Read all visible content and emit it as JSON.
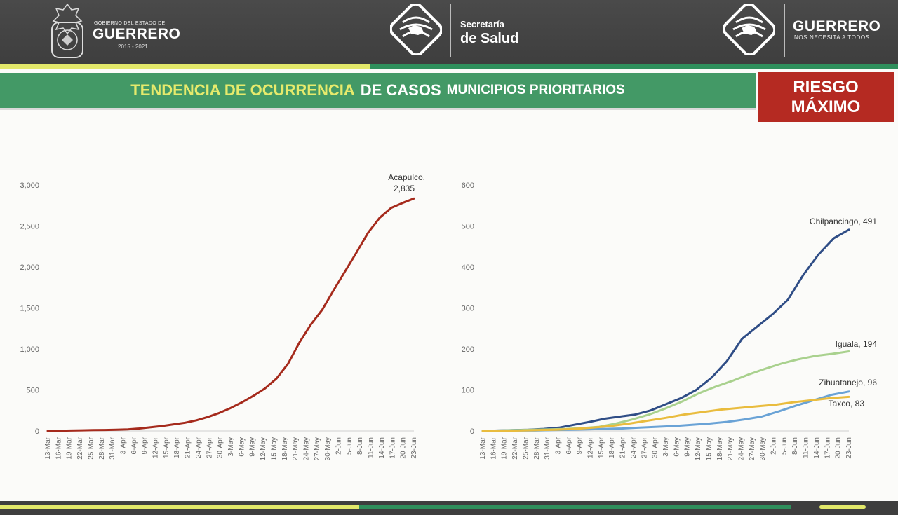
{
  "header": {
    "gobierno_small": "GOBIERNO DEL ESTADO DE",
    "gobierno_big": "GUERRERO",
    "gobierno_years": "2015 - 2021",
    "secretaria_small": "Secretaría",
    "secretaria_big": "de Salud",
    "guerrero_big": "GUERRERO",
    "guerrero_small": "NOS NECESITA A TODOS"
  },
  "banner": {
    "title_part1": "TENDENCIA DE OCURRENCIA",
    "title_part2": "DE CASOS",
    "title_part3": "MUNICIPIOS PRIORITARIOS",
    "risk_line1": "RIESGO",
    "risk_line2": "MÁXIMO"
  },
  "colors": {
    "header_bg": "#3e3e3e",
    "banner_green": "#439966",
    "accent_yellow": "#e2e86a",
    "risk_red": "#b52a22",
    "acapulco": "#a52a1c",
    "chilpancingo": "#2f4d86",
    "iguala": "#a9d18e",
    "zihuatanejo": "#6aa3d6",
    "taxco": "#e9bc3e"
  },
  "chart_data": [
    {
      "type": "line",
      "x_tick_labels": [
        "13-Mar",
        "16-Mar",
        "19-Mar",
        "22-Mar",
        "25-Mar",
        "28-Mar",
        "31-Mar",
        "3-Apr",
        "6-Apr",
        "9-Apr",
        "12-Apr",
        "15-Apr",
        "18-Apr",
        "21-Apr",
        "24-Apr",
        "27-Apr",
        "30-Apr",
        "3-May",
        "6-May",
        "9-May",
        "12-May",
        "15-May",
        "18-May",
        "21-May",
        "24-May",
        "27-May",
        "30-May",
        "2-Jun",
        "5-Jun",
        "8-Jun",
        "11-Jun",
        "14-Jun",
        "17-Jun",
        "20-Jun",
        "23-Jun"
      ],
      "y_tick_labels": [
        "0",
        "500",
        "1,000",
        "1,500",
        "2,000",
        "2,500",
        "3,000"
      ],
      "ylim": [
        0,
        3000
      ],
      "series": [
        {
          "name": "Acapulco",
          "end_label": "Acapulco,",
          "end_value_label": "2,835",
          "color": "#a52a1c",
          "values": [
            0,
            2,
            5,
            8,
            10,
            12,
            15,
            20,
            30,
            45,
            60,
            80,
            100,
            130,
            170,
            220,
            280,
            350,
            430,
            520,
            640,
            820,
            1080,
            1300,
            1480,
            1720,
            1950,
            2180,
            2420,
            2600,
            2720,
            2780,
            2835
          ]
        }
      ]
    },
    {
      "type": "line",
      "x_tick_labels": [
        "13-Mar",
        "16-Mar",
        "19-Mar",
        "22-Mar",
        "25-Mar",
        "28-Mar",
        "31-Mar",
        "3-Apr",
        "6-Apr",
        "9-Apr",
        "12-Apr",
        "15-Apr",
        "18-Apr",
        "21-Apr",
        "24-Apr",
        "27-Apr",
        "30-Apr",
        "3-May",
        "6-May",
        "9-May",
        "12-May",
        "15-May",
        "18-May",
        "21-May",
        "24-May",
        "27-May",
        "30-May",
        "2-Jun",
        "5-Jun",
        "8-Jun",
        "11-Jun",
        "14-Jun",
        "17-Jun",
        "20-Jun",
        "23-Jun"
      ],
      "y_tick_labels": [
        "0",
        "100",
        "200",
        "300",
        "400",
        "500",
        "600"
      ],
      "ylim": [
        0,
        600
      ],
      "series": [
        {
          "name": "Chilpancingo",
          "end_label": "Chilpancingo, 491",
          "color": "#2f4d86",
          "values": [
            0,
            1,
            2,
            3,
            5,
            8,
            15,
            22,
            30,
            35,
            40,
            50,
            65,
            80,
            100,
            130,
            170,
            225,
            255,
            285,
            320,
            380,
            430,
            470,
            491
          ]
        },
        {
          "name": "Iguala",
          "end_label": "Iguala, 194",
          "color": "#a9d18e",
          "values": [
            0,
            1,
            2,
            3,
            4,
            5,
            7,
            10,
            18,
            28,
            40,
            55,
            72,
            92,
            108,
            122,
            138,
            152,
            165,
            175,
            183,
            188,
            194
          ]
        },
        {
          "name": "Zihuatanejo",
          "end_label": "Zihuatanejo, 96",
          "color": "#6aa3d6",
          "values": [
            0,
            0,
            1,
            1,
            2,
            3,
            4,
            5,
            6,
            8,
            10,
            12,
            15,
            18,
            22,
            28,
            35,
            48,
            62,
            75,
            88,
            96
          ]
        },
        {
          "name": "Taxco",
          "end_label": "Taxco, 83",
          "color": "#e9bc3e",
          "values": [
            0,
            0,
            1,
            2,
            3,
            5,
            8,
            12,
            18,
            25,
            32,
            40,
            46,
            52,
            56,
            60,
            64,
            70,
            75,
            80,
            83
          ]
        }
      ]
    }
  ]
}
